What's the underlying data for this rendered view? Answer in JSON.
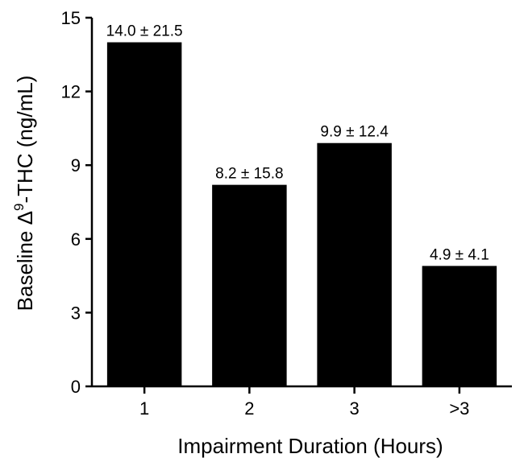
{
  "chart_data": {
    "type": "bar",
    "title": "",
    "xlabel": "Impairment Duration (Hours)",
    "ylabel": {
      "prefix": "Baseline ",
      "delta": "Δ",
      "superscript": "9",
      "suffix": "-THC (ng/mL)"
    },
    "categories": [
      "1",
      "2",
      "3",
      ">3"
    ],
    "values": [
      14.0,
      8.2,
      9.9,
      4.9
    ],
    "data_labels": [
      "14.0 ± 21.5",
      "8.2 ± 15.8",
      "9.9 ± 12.4",
      "4.9 ± 4.1"
    ],
    "ylim": [
      0,
      15
    ],
    "yticks": [
      0,
      3,
      6,
      9,
      12,
      15
    ],
    "bar_color": "#000000",
    "grid": false
  }
}
